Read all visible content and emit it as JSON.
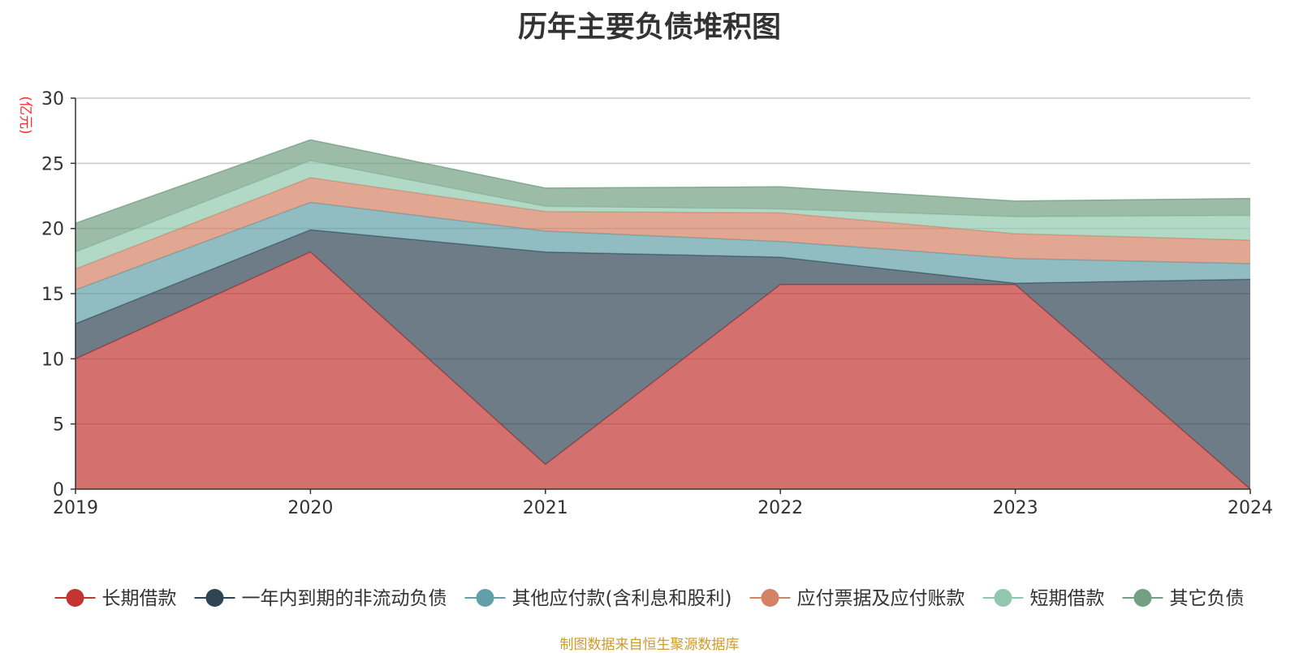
{
  "chart_data": {
    "type": "area",
    "stacked": true,
    "title": "历年主要负债堆积图",
    "unit_label": "(亿元)",
    "source_note": "制图数据来自恒生聚源数据库",
    "categories": [
      "2019",
      "2020",
      "2021",
      "2022",
      "2023",
      "2024"
    ],
    "ylim": [
      0,
      30
    ],
    "yticks": [
      0,
      5,
      10,
      15,
      20,
      25,
      30
    ],
    "grid": true,
    "legend_position": "bottom",
    "series": [
      {
        "name": "长期借款",
        "color": "#c23531",
        "values": [
          10.0,
          18.2,
          1.9,
          15.7,
          15.7,
          0.0
        ]
      },
      {
        "name": "一年内到期的非流动负债",
        "color": "#2f4554",
        "values": [
          2.7,
          1.7,
          16.3,
          2.1,
          0.1,
          16.1
        ]
      },
      {
        "name": "其他应付款(含利息和股利)",
        "color": "#61a0a8",
        "values": [
          2.6,
          2.1,
          1.6,
          1.2,
          1.9,
          1.2
        ]
      },
      {
        "name": "应付票据及应付账款",
        "color": "#d48265",
        "values": [
          1.6,
          1.9,
          1.5,
          2.2,
          1.9,
          1.8
        ]
      },
      {
        "name": "短期借款",
        "color": "#91c7ae",
        "values": [
          1.3,
          1.3,
          0.4,
          0.3,
          1.3,
          1.9
        ]
      },
      {
        "name": "其它负债",
        "color": "#749f83",
        "values": [
          2.2,
          1.6,
          1.4,
          1.7,
          1.2,
          1.3
        ]
      }
    ]
  }
}
